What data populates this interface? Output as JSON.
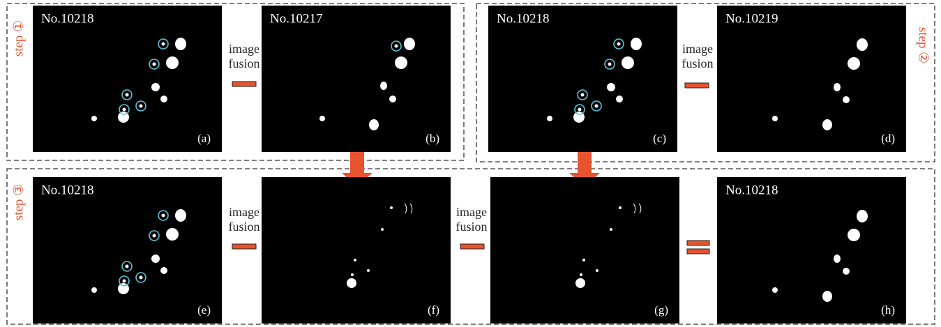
{
  "steps": [
    "step ①",
    "step ②",
    "step ③"
  ],
  "panels": [
    {
      "title": "No.10218",
      "label": "(a)"
    },
    {
      "title": "No.10217",
      "label": "(b)"
    },
    {
      "title": "No.10218",
      "label": "(c)"
    },
    {
      "title": "No.10219",
      "label": "(d)"
    },
    {
      "title": "No.10218",
      "label": "(e)"
    },
    {
      "label": "(f)"
    },
    {
      "label": "(g)"
    },
    {
      "title": "No.10218",
      "label": "(h)"
    }
  ],
  "operators": [
    {
      "lines": [
        "image",
        "fusion"
      ]
    },
    {
      "lines": [
        "image",
        "fusion"
      ]
    },
    {
      "lines": [
        "image",
        "fusion"
      ]
    },
    {
      "lines": [
        "image",
        "fusion"
      ]
    }
  ]
}
